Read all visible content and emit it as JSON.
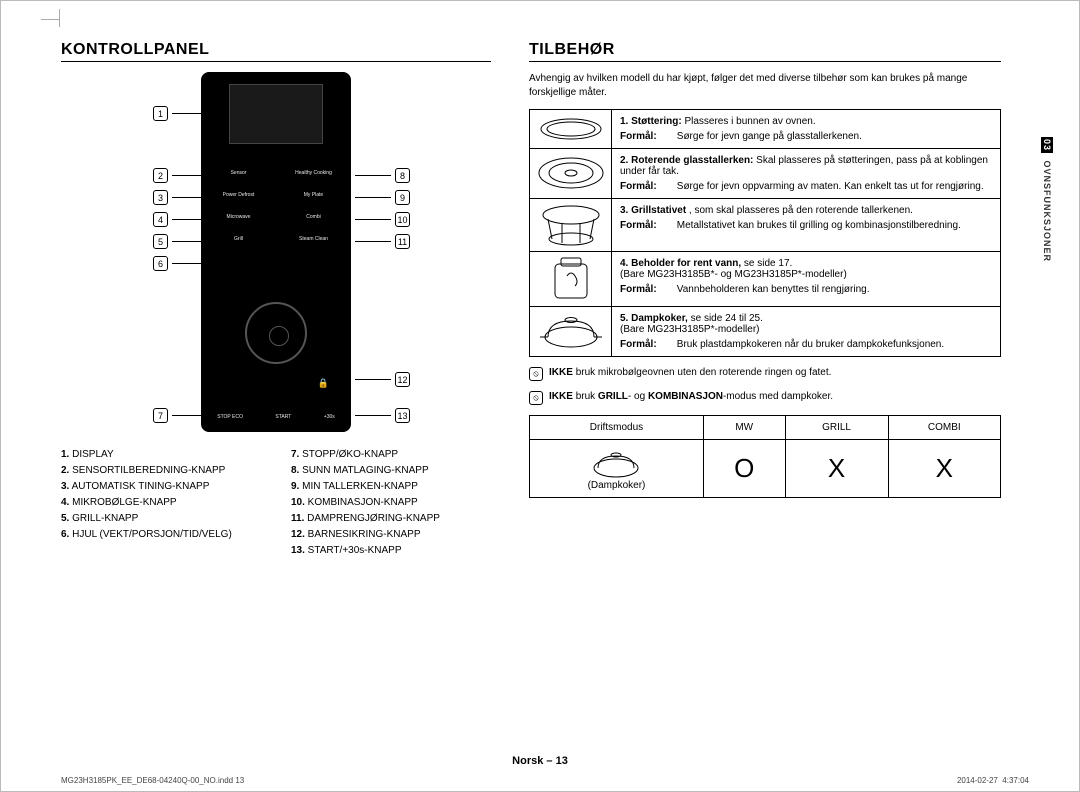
{
  "page": {
    "footer": "Norsk – 13",
    "imprint_file": "MG23H3185PK_EE_DE68-04240Q-00_NO.indd   13",
    "imprint_date": "2014-02-27   ‭‭ 4:37:04"
  },
  "side_tab": {
    "num": "03",
    "label": "OVNSFUNKSJONER"
  },
  "left": {
    "heading": "KONTROLLPANEL",
    "panel_buttons": {
      "r1a": "Sensor",
      "r1b": "Healthy Cooking",
      "r2a": "Power Defrost",
      "r2b": "My Plate",
      "r3a": "Microwave",
      "r3b": "Combi",
      "r4a": "Grill",
      "r4b": "Steam Clean"
    },
    "panel_bottom": {
      "a": "STOP  ECO",
      "b": "START",
      "c": "+30s"
    },
    "callouts": [
      {
        "n": "1"
      },
      {
        "n": "2"
      },
      {
        "n": "3"
      },
      {
        "n": "4"
      },
      {
        "n": "5"
      },
      {
        "n": "6"
      },
      {
        "n": "7"
      },
      {
        "n": "8"
      },
      {
        "n": "9"
      },
      {
        "n": "10"
      },
      {
        "n": "11"
      },
      {
        "n": "12"
      },
      {
        "n": "13"
      }
    ],
    "legend_left": [
      {
        "n": "1.",
        "t": "DISPLAY"
      },
      {
        "n": "2.",
        "t": "SENSORTILBEREDNING-KNAPP"
      },
      {
        "n": "3.",
        "t": "AUTOMATISK TINING-KNAPP"
      },
      {
        "n": "4.",
        "t": "MIKROBØLGE-KNAPP"
      },
      {
        "n": "5.",
        "t": "GRILL-KNAPP"
      },
      {
        "n": "6.",
        "t": "HJUL (VEKT/PORSJON/TID/VELG)"
      }
    ],
    "legend_right": [
      {
        "n": "7.",
        "t": "STOPP/ØKO-KNAPP"
      },
      {
        "n": "8.",
        "t": "SUNN MATLAGING-KNAPP"
      },
      {
        "n": "9.",
        "t": "MIN TALLERKEN-KNAPP"
      },
      {
        "n": "10.",
        "t": "KOMBINASJON-KNAPP"
      },
      {
        "n": "11.",
        "t": "DAMPRENGJØRING-KNAPP"
      },
      {
        "n": "12.",
        "t": "BARNESIKRING-KNAPP"
      },
      {
        "n": "13.",
        "t": "START/+30s-KNAPP"
      }
    ]
  },
  "right": {
    "heading": "TILBEHØR",
    "intro": "Avhengig av hvilken modell du har kjøpt, følger det med diverse tilbehør som kan brukes på mange forskjellige måter.",
    "items": [
      {
        "n": "1.",
        "title": "Støttering:",
        "text": "Plasseres i bunnen av ovnen.",
        "formal": "Sørge for jevn gange på glasstallerkenen."
      },
      {
        "n": "2.",
        "title": "Roterende glasstallerken:",
        "text": "Skal plasseres på støtteringen, pass på at koblingen under får tak.",
        "formal": "Sørge for jevn oppvarming av maten. Kan enkelt tas ut for rengjøring."
      },
      {
        "n": "3.",
        "title": "Grillstativet",
        "text": ", som skal plasseres på den roterende tallerkenen.",
        "formal": "Metallstativet kan brukes til grilling og kombinasjonstilberedning."
      },
      {
        "n": "4.",
        "title": "Beholder for rent vann,",
        "text": "se side 17.",
        "extra": "(Bare MG23H3185B*- og MG23H3185P*-modeller)",
        "formal": "Vannbeholderen kan benyttes til rengjøring."
      },
      {
        "n": "5.",
        "title": "Dampkoker,",
        "text": "se side 24 til 25.",
        "extra": "(Bare MG23H3185P*-modeller)",
        "formal": "Bruk plastdampkokeren når du bruker dampkokefunksjonen."
      }
    ],
    "formal_label": "Formål:",
    "note1_a": "IKKE",
    "note1_b": "bruk mikrobølgeovnen uten den roterende ringen og fatet.",
    "note2_a": "IKKE",
    "note2_b": "bruk",
    "note2_c": "GRILL",
    "note2_d": "- og",
    "note2_e": "KOMBINASJON",
    "note2_f": "-modus med dampkoker.",
    "modes": {
      "h1": "Driftsmodus",
      "h2": "MW",
      "h3": "GRILL",
      "h4": "COMBI",
      "row_label": "(Dampkoker)",
      "v1": "O",
      "v2": "X",
      "v3": "X"
    }
  }
}
